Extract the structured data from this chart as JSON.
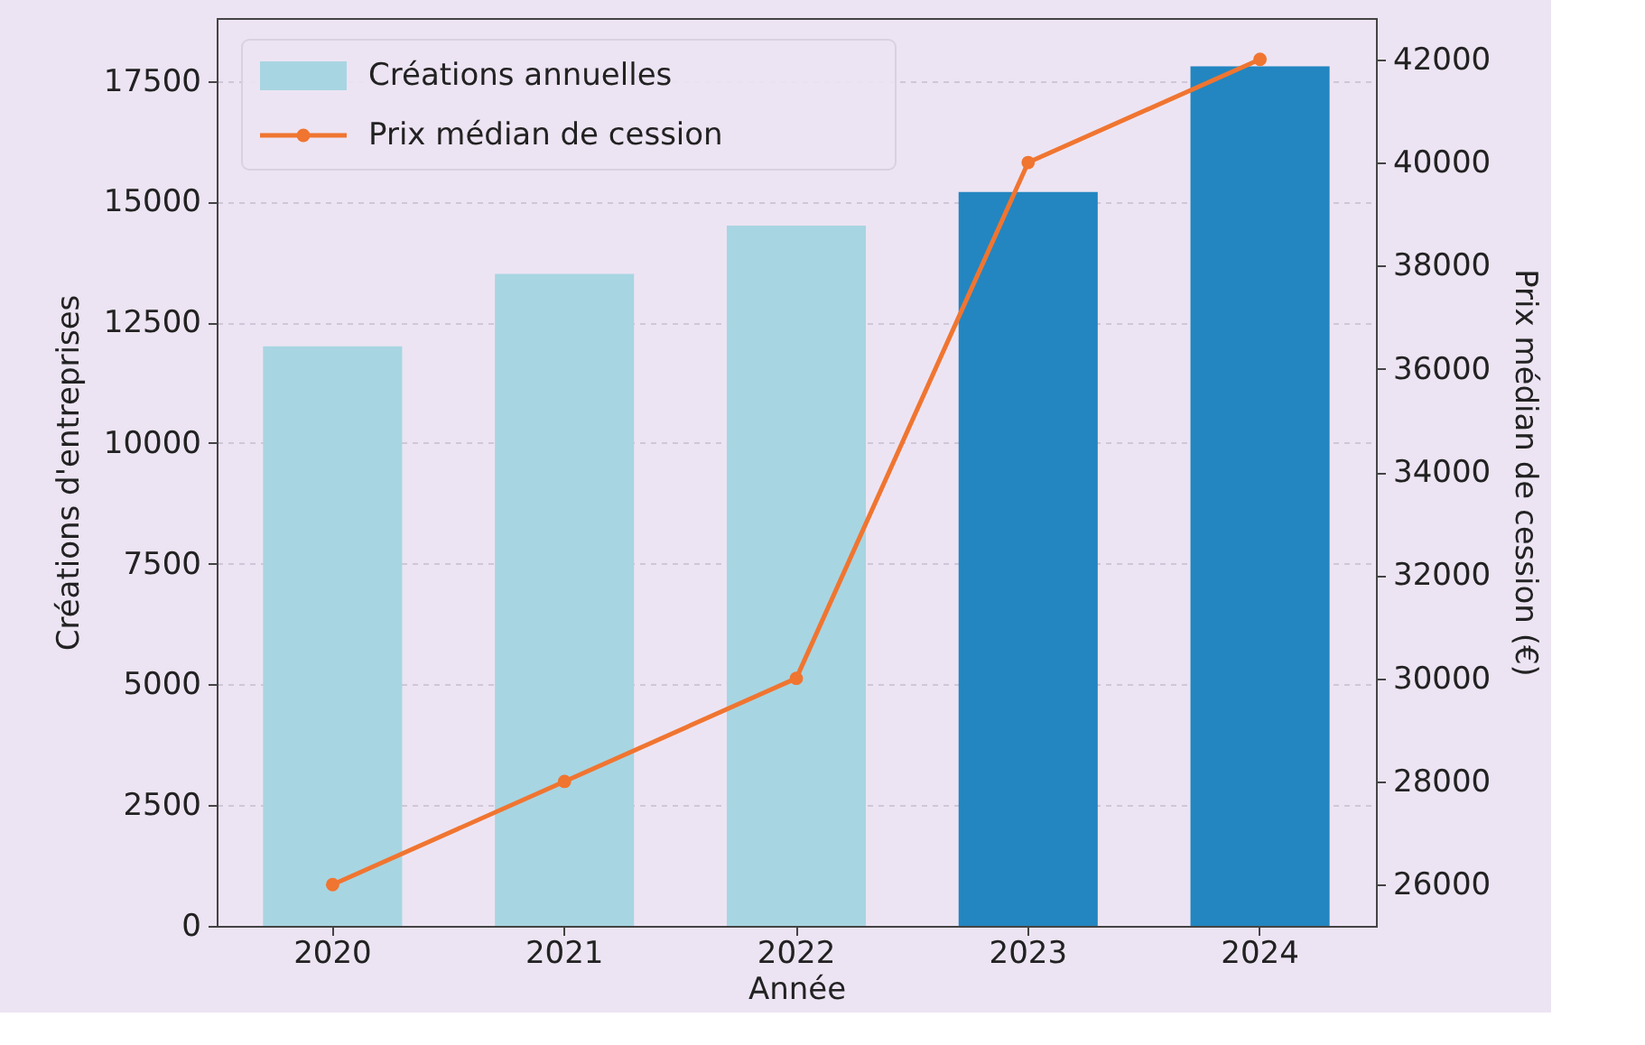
{
  "chart_data": {
    "type": "bar",
    "xlabel": "Année",
    "ylabel": "Créations d'entreprises",
    "y2label": "Prix médian de cession (€)",
    "categories": [
      "2020",
      "2021",
      "2022",
      "2023",
      "2024"
    ],
    "series": [
      {
        "name": "Créations annuelles",
        "color": "#a8d5e2",
        "colors": [
          "#a8d5e2",
          "#a8d5e2",
          "#a8d5e2",
          "#2386c0",
          "#2386c0"
        ],
        "values": [
          12000,
          13500,
          14500,
          15200,
          17800
        ]
      },
      {
        "name": "Prix médian de cession",
        "type": "line",
        "axis": "y2",
        "color": "#f07530",
        "marker": "circle",
        "values": [
          26000,
          28000,
          30000,
          40000,
          42000
        ]
      }
    ],
    "ylim": [
      0,
      18800
    ],
    "yticks": [
      0,
      2500,
      5000,
      7500,
      10000,
      12500,
      15000,
      17500
    ],
    "y2lim": [
      25200,
      42800
    ],
    "y2ticks": [
      26000,
      28000,
      30000,
      32000,
      34000,
      36000,
      38000,
      40000,
      42000
    ],
    "grid": "y",
    "legend": "top left"
  }
}
